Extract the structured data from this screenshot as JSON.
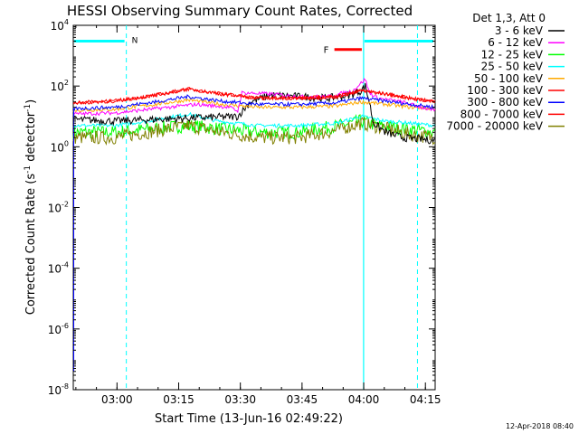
{
  "chart_data": {
    "type": "line",
    "title": "HESSI Observing Summary Count Rates, Corrected",
    "xlabel": "Start Time (13-Jun-16 02:49:22)",
    "ylabel_main": "Corrected Count Rate (s",
    "ylabel_sup1": "-1",
    "ylabel_mid": " detector",
    "ylabel_sup2": "-1",
    "ylabel_end": ")",
    "ylog": true,
    "ylim_exp": [
      -8,
      4
    ],
    "y_ticks": [
      {
        "base": "10",
        "exp": "4",
        "e": 4
      },
      {
        "base": "10",
        "exp": "2",
        "e": 2
      },
      {
        "base": "10",
        "exp": "0",
        "e": 0
      },
      {
        "base": "10",
        "exp": "-2",
        "e": -2
      },
      {
        "base": "10",
        "exp": "-4",
        "e": -4
      },
      {
        "base": "10",
        "exp": "-6",
        "e": -6
      },
      {
        "base": "10",
        "exp": "-8",
        "e": -8
      }
    ],
    "x_range_min": [
      0,
      88
    ],
    "x_ticks": [
      {
        "label": "03:00",
        "m": 10.63
      },
      {
        "label": "03:15",
        "m": 25.63
      },
      {
        "label": "03:30",
        "m": 40.63
      },
      {
        "label": "03:45",
        "m": 55.63
      },
      {
        "label": "04:00",
        "m": 70.63
      },
      {
        "label": "04:15",
        "m": 85.63
      }
    ],
    "legend_title": "Det 1,3, Att 0",
    "legend_placement": "outside-right",
    "series": [
      {
        "name": "3 - 6 keV",
        "color": "#000000",
        "points": [
          [
            0,
            8
          ],
          [
            10,
            7
          ],
          [
            20,
            8
          ],
          [
            30,
            9
          ],
          [
            40,
            10
          ],
          [
            43,
            30
          ],
          [
            48,
            50
          ],
          [
            55,
            45
          ],
          [
            62,
            40
          ],
          [
            67,
            50
          ],
          [
            70,
            70
          ],
          [
            71,
            100
          ],
          [
            72,
            30
          ],
          [
            73,
            6
          ],
          [
            76,
            3
          ],
          [
            80,
            2
          ],
          [
            84,
            1.8
          ],
          [
            88,
            1.6
          ]
        ]
      },
      {
        "name": "6 - 12 keV",
        "color": "#ff00ff",
        "points": [
          [
            0,
            12
          ],
          [
            10,
            13
          ],
          [
            20,
            18
          ],
          [
            30,
            25
          ],
          [
            38,
            20
          ],
          [
            40,
            15
          ],
          [
            41,
            60
          ],
          [
            48,
            55
          ],
          [
            55,
            45
          ],
          [
            62,
            45
          ],
          [
            68,
            70
          ],
          [
            71,
            170
          ],
          [
            72,
            60
          ],
          [
            74,
            40
          ],
          [
            80,
            30
          ],
          [
            88,
            15
          ]
        ]
      },
      {
        "name": "12 - 25 keV",
        "color": "#00ff00",
        "points": [
          [
            0,
            3
          ],
          [
            10,
            3
          ],
          [
            20,
            4
          ],
          [
            28,
            5
          ],
          [
            35,
            4
          ],
          [
            45,
            3
          ],
          [
            55,
            3
          ],
          [
            65,
            5
          ],
          [
            70,
            7
          ],
          [
            74,
            5
          ],
          [
            80,
            4
          ],
          [
            88,
            3
          ]
        ]
      },
      {
        "name": "25 - 50 keV",
        "color": "#00ffff",
        "points": [
          [
            0,
            5
          ],
          [
            10,
            5
          ],
          [
            18,
            7
          ],
          [
            28,
            12
          ],
          [
            35,
            7
          ],
          [
            45,
            5
          ],
          [
            55,
            5
          ],
          [
            64,
            6
          ],
          [
            70,
            10
          ],
          [
            76,
            7
          ],
          [
            82,
            6
          ],
          [
            88,
            5
          ]
        ]
      },
      {
        "name": "50 - 100 keV",
        "color": "#ffaa00",
        "points": [
          [
            0,
            16
          ],
          [
            10,
            17
          ],
          [
            20,
            25
          ],
          [
            28,
            35
          ],
          [
            36,
            25
          ],
          [
            45,
            20
          ],
          [
            55,
            20
          ],
          [
            64,
            22
          ],
          [
            70,
            30
          ],
          [
            76,
            25
          ],
          [
            82,
            20
          ],
          [
            88,
            18
          ]
        ]
      },
      {
        "name": "100 - 300 keV",
        "color": "#ff0000",
        "points": [
          [
            0,
            28
          ],
          [
            10,
            32
          ],
          [
            20,
            50
          ],
          [
            28,
            80
          ],
          [
            36,
            55
          ],
          [
            45,
            40
          ],
          [
            55,
            40
          ],
          [
            64,
            45
          ],
          [
            70,
            70
          ],
          [
            76,
            55
          ],
          [
            82,
            40
          ],
          [
            88,
            30
          ]
        ]
      },
      {
        "name": "300 - 800 keV",
        "color": "#0000ff",
        "points": [
          [
            0,
            18
          ],
          [
            10,
            20
          ],
          [
            20,
            30
          ],
          [
            28,
            45
          ],
          [
            36,
            32
          ],
          [
            45,
            25
          ],
          [
            55,
            25
          ],
          [
            64,
            28
          ],
          [
            70,
            40
          ],
          [
            76,
            32
          ],
          [
            82,
            25
          ],
          [
            88,
            20
          ]
        ]
      },
      {
        "name": "800 - 7000 keV",
        "color": "#ff0000",
        "points": [
          [
            0,
            28
          ],
          [
            10,
            32
          ],
          [
            20,
            50
          ],
          [
            28,
            80
          ],
          [
            36,
            55
          ],
          [
            45,
            40
          ],
          [
            55,
            40
          ],
          [
            64,
            45
          ],
          [
            70,
            70
          ],
          [
            76,
            55
          ],
          [
            82,
            40
          ],
          [
            88,
            30
          ]
        ]
      },
      {
        "name": "7000 - 20000 keV",
        "color": "#808000",
        "points": [
          [
            0,
            2
          ],
          [
            10,
            2
          ],
          [
            18,
            3
          ],
          [
            28,
            5
          ],
          [
            36,
            3
          ],
          [
            45,
            2
          ],
          [
            55,
            2
          ],
          [
            62,
            3
          ],
          [
            70,
            6
          ],
          [
            76,
            4
          ],
          [
            82,
            2.5
          ],
          [
            88,
            2
          ]
        ]
      }
    ],
    "annotations": {
      "n_label": "N",
      "n_color": "#00ffff",
      "f_label": "F",
      "f_color": "#ff0000",
      "night_segments": [
        [
          0,
          12.9
        ],
        [
          70.6,
          88
        ]
      ],
      "night_level": 3000,
      "flare_segment": [
        63.5,
        70.6
      ],
      "flare_level": 1600,
      "cyan_dashed_min": [
        12.9,
        83.7
      ],
      "cyan_solid_min": [
        70.6
      ]
    }
  },
  "footer": {
    "timestamp": "12-Apr-2018 08:40"
  }
}
